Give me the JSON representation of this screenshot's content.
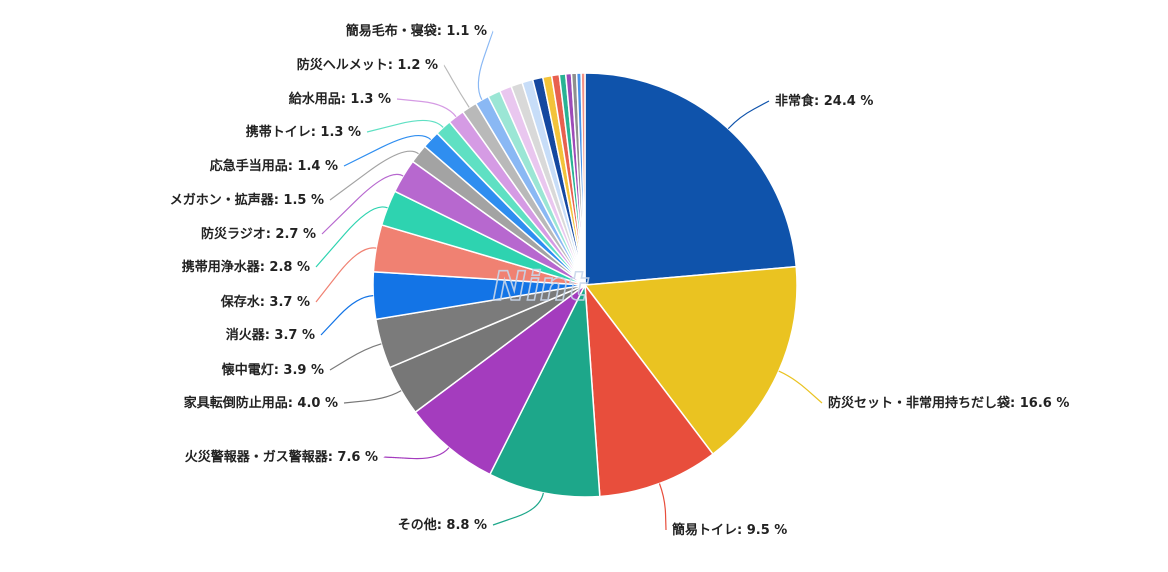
{
  "chart_data": {
    "type": "pie",
    "title": "",
    "unit": "%",
    "labels": [
      "非常食",
      "防災セット・非常用持ちだし袋",
      "簡易トイレ",
      "その他",
      "火災警報器・ガス警報器",
      "家具転倒防止用品",
      "懐中電灯",
      "消火器",
      "保存水",
      "携帯用浄水器",
      "防災ラジオ",
      "メガホン・拡声器",
      "応急手当用品",
      "携帯トイレ",
      "給水用品",
      "防災ヘルメット",
      "簡易毛布・寝袋"
    ],
    "values": [
      24.4,
      16.6,
      9.5,
      8.8,
      7.6,
      4.0,
      3.9,
      3.7,
      3.7,
      2.8,
      2.7,
      1.5,
      1.4,
      1.3,
      1.3,
      1.2,
      1.1
    ],
    "display_labels": [
      "非常食: 24.4 %",
      "防災セット・非常用持ちだし袋: 16.6 %",
      "簡易トイレ: 9.5 %",
      "その他: 8.8 %",
      "火災警報器・ガス警報器: 7.6 %",
      "家具転倒防止用品: 4.0 %",
      "懐中電灯: 3.9 %",
      "消火器: 3.7 %",
      "保存水: 3.7 %",
      "携帯用浄水器: 2.8 %",
      "防災ラジオ: 2.7 %",
      "メガホン・拡声器: 1.5 %",
      "応急手当用品: 1.4 %",
      "携帯トイレ: 1.3 %",
      "給水用品: 1.3 %",
      "防災ヘルメット: 1.2 %",
      "簡易毛布・寝袋: 1.1 %"
    ],
    "colors": [
      "#0f53ab",
      "#eac321",
      "#e84e3c",
      "#1da78a",
      "#a43cbe",
      "#777777",
      "#7b7b7b",
      "#1374e6",
      "#f08172",
      "#2ed3b0",
      "#b768cf",
      "#a3a3a3",
      "#2f8ef0",
      "#5fe0c3",
      "#d59be4",
      "#b9b9b9",
      "#8ab8f4"
    ],
    "small_slices": {
      "values": [
        1.0,
        0.95,
        0.9,
        0.85,
        0.8,
        0.7,
        0.6,
        0.5,
        0.45,
        0.4,
        0.35,
        0.3
      ],
      "colors": [
        "#9be6d5",
        "#e9c7ef",
        "#d9d9d9",
        "#c7ddf8",
        "#1448a0",
        "#f3c33a",
        "#e8604f",
        "#29b394",
        "#9d4bb8",
        "#8f8f8f",
        "#4792ea",
        "#f39386"
      ]
    },
    "legend": "none",
    "watermark": "Nint"
  }
}
